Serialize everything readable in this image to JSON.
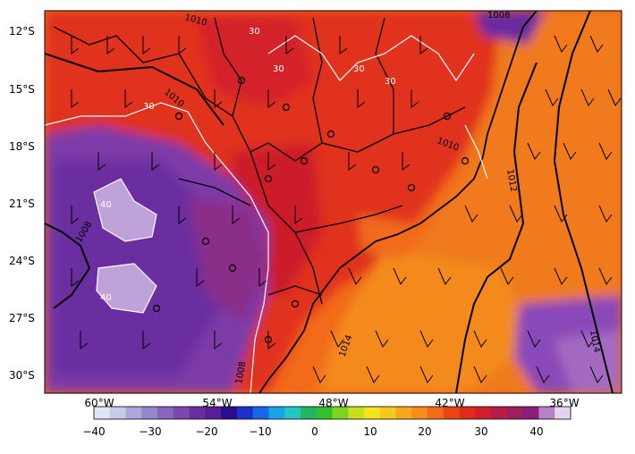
{
  "map": {
    "lat_labels": [
      "12°S",
      "15°S",
      "18°S",
      "21°S",
      "24°S",
      "27°S",
      "30°S"
    ],
    "lon_labels": [
      "60°W",
      "54°W",
      "48°W",
      "42°W",
      "36°W"
    ],
    "isobar_labels": [
      "1010",
      "1010",
      "1010",
      "1012",
      "1014",
      "1014",
      "1008",
      "1008",
      "1008"
    ],
    "temp_contour_labels": [
      "30",
      "30",
      "30",
      "30",
      "40",
      "40",
      "30"
    ]
  },
  "colorbar": {
    "ticks": [
      "−40",
      "−30",
      "−20",
      "−10",
      "0",
      "10",
      "20",
      "30",
      "40"
    ],
    "colors": [
      "#e2e6f3",
      "#c6cbe8",
      "#aaa8da",
      "#9487cc",
      "#8865bd",
      "#7d47ad",
      "#6a2ea0",
      "#5a1c97",
      "#2a0c8e",
      "#1e2fd0",
      "#1a66e6",
      "#1aa3e8",
      "#22c7c3",
      "#22b565",
      "#33c02a",
      "#7ed321",
      "#c8e01c",
      "#f0e51a",
      "#f6c81a",
      "#f5a81a",
      "#f68c1a",
      "#f26a1a",
      "#ea4517",
      "#e02a1a",
      "#cf1f2c",
      "#b71e45",
      "#9d1f5c",
      "#88207a",
      "#b77fc6",
      "#e6d3ee"
    ]
  }
}
